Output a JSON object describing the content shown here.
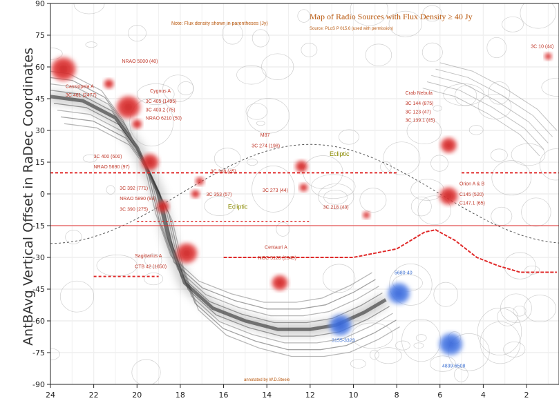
{
  "chart_data": {
    "type": "scatter",
    "title": "Map of Radio Sources with Flux Density ≥ 40 Jy",
    "subtitle": "Source: PLoS P 015.6 (used with permission)",
    "note": "Note: Flux density shown in parentheses (Jy)",
    "credit": "annotated by W.D.Steele",
    "xlabel": "",
    "ylabel": "AntBAvg Vertical Offset in RaDec Coordinates",
    "xlim": [
      24,
      0.5
    ],
    "ylim": [
      -90,
      90
    ],
    "x_ticks": [
      24,
      22,
      20,
      18,
      16,
      14,
      12,
      10,
      8,
      6,
      4,
      2
    ],
    "y_ticks": [
      90,
      75,
      60,
      45,
      30,
      15,
      0,
      -15,
      -30,
      -45,
      -60,
      -75,
      -90
    ],
    "grid": true,
    "colors": {
      "source_red": "#e03030",
      "source_blue": "#3d6fe0",
      "label_red": "#c0392b",
      "label_blue": "#3b6fd1",
      "annotation": "#b8560b",
      "ecliptic_label": "#8a8a00",
      "track": "#e02a2a"
    },
    "sources": [
      {
        "x": 23.4,
        "y": 59,
        "color": "red",
        "size": 2.0
      },
      {
        "x": 21.3,
        "y": 52,
        "color": "red",
        "size": 0.8
      },
      {
        "x": 20.4,
        "y": 41,
        "color": "red",
        "size": 1.9
      },
      {
        "x": 20.0,
        "y": 33,
        "color": "red",
        "size": 0.8
      },
      {
        "x": 19.4,
        "y": 15,
        "color": "red",
        "size": 1.4
      },
      {
        "x": 18.8,
        "y": -6,
        "color": "red",
        "size": 1.0
      },
      {
        "x": 17.7,
        "y": -28,
        "color": "red",
        "size": 1.7
      },
      {
        "x": 17.1,
        "y": 6,
        "color": "red",
        "size": 0.7
      },
      {
        "x": 17.3,
        "y": 0,
        "color": "red",
        "size": 0.7
      },
      {
        "x": 12.4,
        "y": 13,
        "color": "red",
        "size": 1.0
      },
      {
        "x": 12.3,
        "y": 3,
        "color": "red",
        "size": 0.7
      },
      {
        "x": 9.4,
        "y": -10,
        "color": "red",
        "size": 0.6
      },
      {
        "x": 13.4,
        "y": -42,
        "color": "red",
        "size": 1.3
      },
      {
        "x": 5.6,
        "y": 23,
        "color": "red",
        "size": 1.3
      },
      {
        "x": 5.6,
        "y": -1,
        "color": "red",
        "size": 1.5
      },
      {
        "x": 1.0,
        "y": 65,
        "color": "red",
        "size": 0.6
      },
      {
        "x": 7.9,
        "y": -47,
        "color": "blue",
        "size": 1.8
      },
      {
        "x": 10.6,
        "y": -62,
        "color": "blue",
        "size": 1.8
      },
      {
        "x": 5.5,
        "y": -71,
        "color": "blue",
        "size": 1.9
      }
    ],
    "labels": [
      {
        "text": "Cassiopeia A",
        "x": 23.3,
        "y": 50,
        "color": "red"
      },
      {
        "text": "3C 461 (2477)",
        "x": 23.3,
        "y": 46,
        "color": "red"
      },
      {
        "text": "NRAO 5000 (40)",
        "x": 20.7,
        "y": 62,
        "color": "red"
      },
      {
        "text": "Cygnus A",
        "x": 19.4,
        "y": 48,
        "color": "red"
      },
      {
        "text": "3C 405 (1495)",
        "x": 19.6,
        "y": 43,
        "color": "red"
      },
      {
        "text": "3C 403.2 (75)",
        "x": 19.6,
        "y": 39,
        "color": "red"
      },
      {
        "text": "NRAO 6210 (50)",
        "x": 19.6,
        "y": 35,
        "color": "red"
      },
      {
        "text": "3C 400 (600)",
        "x": 22.0,
        "y": 17,
        "color": "red"
      },
      {
        "text": "NRAO 5690 (97)",
        "x": 22.0,
        "y": 12,
        "color": "red"
      },
      {
        "text": "3C 348 (45)",
        "x": 16.6,
        "y": 10,
        "color": "red"
      },
      {
        "text": "3C 353 (57)",
        "x": 16.8,
        "y": -1,
        "color": "red"
      },
      {
        "text": "3C 392 (771)",
        "x": 20.8,
        "y": 2,
        "color": "red"
      },
      {
        "text": "NRAO 5890 (93)",
        "x": 20.8,
        "y": -3,
        "color": "red"
      },
      {
        "text": "3C 390 (275)",
        "x": 20.8,
        "y": -8,
        "color": "red"
      },
      {
        "text": "Sagittarius A",
        "x": 20.1,
        "y": -30,
        "color": "red"
      },
      {
        "text": "CTB 42 (1650)",
        "x": 20.1,
        "y": -35,
        "color": "red"
      },
      {
        "text": "M87",
        "x": 14.3,
        "y": 27,
        "color": "red"
      },
      {
        "text": "3C 274 (198)",
        "x": 14.7,
        "y": 22,
        "color": "red"
      },
      {
        "text": "3C 273 (44)",
        "x": 14.2,
        "y": 1,
        "color": "red"
      },
      {
        "text": "3C 218 (43)",
        "x": 11.4,
        "y": -7,
        "color": "red"
      },
      {
        "text": "Centauri A",
        "x": 14.1,
        "y": -26,
        "color": "red"
      },
      {
        "text": "NGC 5128 (2345)",
        "x": 14.4,
        "y": -31,
        "color": "red"
      },
      {
        "text": "Crab Nebula",
        "x": 7.6,
        "y": 47,
        "color": "red"
      },
      {
        "text": "3C 144 (875)",
        "x": 7.6,
        "y": 42,
        "color": "red"
      },
      {
        "text": "3C 123 (47)",
        "x": 7.6,
        "y": 38,
        "color": "red"
      },
      {
        "text": "3C 139.1 (45)",
        "x": 7.6,
        "y": 34,
        "color": "red"
      },
      {
        "text": "Orion A & B",
        "x": 5.1,
        "y": 4,
        "color": "red"
      },
      {
        "text": "C145 (520)",
        "x": 5.1,
        "y": -1,
        "color": "red"
      },
      {
        "text": "C147.1 (65)",
        "x": 5.1,
        "y": -5,
        "color": "red"
      },
      {
        "text": "3C 10 (44)",
        "x": 1.8,
        "y": 69,
        "color": "red"
      },
      {
        "text": "5680-40",
        "x": 8.1,
        "y": -38,
        "color": "blue"
      },
      {
        "text": "3155-3323",
        "x": 11.0,
        "y": -70,
        "color": "blue"
      },
      {
        "text": "4839-6508",
        "x": 5.9,
        "y": -82,
        "color": "blue"
      }
    ],
    "ecliptic_labels": [
      {
        "text": "Ecliptic",
        "x": 11.1,
        "y": 18
      },
      {
        "text": "Ecliptic",
        "x": 15.8,
        "y": -7
      }
    ]
  }
}
